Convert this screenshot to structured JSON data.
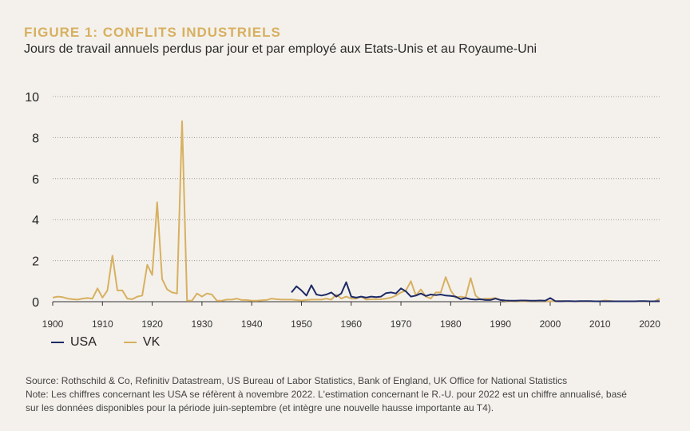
{
  "title": "FIGURE 1: CONFLITS INDUSTRIELS",
  "subtitle": "Jours de travail annuels perdus par jour et par employé aux Etats-Unis et au Royaume-Uni",
  "footer": {
    "source": "Source: Rothschild & Co, Refinitiv Datastream, US Bureau of Labor Statistics, Bank of England, UK Office for National Statistics",
    "note_line1": "Note: Les chiffres concernant les USA se réfèrent à novembre 2022. L'estimation concernant le R.-U. pour 2022 est un chiffre annualisé, basé",
    "note_line2": "sur les données disponibles pour la période juin-septembre (et intègre une nouvelle hausse importante au T4)."
  },
  "colors": {
    "usa": "#1e2a66",
    "uk": "#d7b060",
    "axis": "#333333",
    "grid": "#999999"
  },
  "chart_data": {
    "type": "line",
    "title": "FIGURE 1: CONFLITS INDUSTRIELS",
    "subtitle": "Jours de travail annuels perdus par jour et par employé aux Etats-Unis et au Royaume-Uni",
    "xlabel": "",
    "ylabel": "",
    "xlim": [
      1900,
      2022
    ],
    "ylim": [
      0,
      10
    ],
    "yticks": [
      0,
      2,
      4,
      6,
      8,
      10
    ],
    "xticks": [
      1900,
      1910,
      1920,
      1930,
      1940,
      1950,
      1960,
      1970,
      1980,
      1990,
      2000,
      2010,
      2020
    ],
    "grid": "horizontal dotted",
    "legend": "bottom-left",
    "series": [
      {
        "name": "USA",
        "color": "#1e2a66",
        "x": [
          1948,
          1949,
          1950,
          1951,
          1952,
          1953,
          1954,
          1955,
          1956,
          1957,
          1958,
          1959,
          1960,
          1961,
          1962,
          1963,
          1964,
          1965,
          1966,
          1967,
          1968,
          1969,
          1970,
          1971,
          1972,
          1973,
          1974,
          1975,
          1976,
          1977,
          1978,
          1979,
          1980,
          1981,
          1982,
          1983,
          1984,
          1985,
          1986,
          1987,
          1988,
          1989,
          1990,
          1991,
          1992,
          1993,
          1994,
          1995,
          1996,
          1997,
          1998,
          1999,
          2000,
          2001,
          2002,
          2003,
          2004,
          2005,
          2006,
          2007,
          2008,
          2009,
          2010,
          2011,
          2012,
          2013,
          2014,
          2015,
          2016,
          2017,
          2018,
          2019,
          2020,
          2021,
          2022
        ],
        "values": [
          0.45,
          0.75,
          0.55,
          0.3,
          0.8,
          0.35,
          0.3,
          0.35,
          0.45,
          0.25,
          0.4,
          0.95,
          0.25,
          0.2,
          0.25,
          0.2,
          0.25,
          0.22,
          0.25,
          0.42,
          0.45,
          0.4,
          0.65,
          0.5,
          0.25,
          0.3,
          0.4,
          0.28,
          0.35,
          0.32,
          0.35,
          0.3,
          0.28,
          0.25,
          0.12,
          0.18,
          0.12,
          0.1,
          0.12,
          0.08,
          0.08,
          0.15,
          0.08,
          0.06,
          0.05,
          0.05,
          0.06,
          0.06,
          0.05,
          0.05,
          0.06,
          0.05,
          0.18,
          0.03,
          0.02,
          0.03,
          0.03,
          0.02,
          0.03,
          0.03,
          0.03,
          0.02,
          0.02,
          0.02,
          0.02,
          0.02,
          0.02,
          0.02,
          0.02,
          0.02,
          0.03,
          0.03,
          0.02,
          0.02,
          0.03
        ]
      },
      {
        "name": "VK",
        "color": "#d7b060",
        "x": [
          1900,
          1901,
          1902,
          1903,
          1904,
          1905,
          1906,
          1907,
          1908,
          1909,
          1910,
          1911,
          1912,
          1913,
          1914,
          1915,
          1916,
          1917,
          1918,
          1919,
          1920,
          1921,
          1922,
          1923,
          1924,
          1925,
          1926,
          1927,
          1928,
          1929,
          1930,
          1931,
          1932,
          1933,
          1934,
          1935,
          1936,
          1937,
          1938,
          1939,
          1940,
          1941,
          1942,
          1943,
          1944,
          1945,
          1946,
          1947,
          1948,
          1949,
          1950,
          1951,
          1952,
          1953,
          1954,
          1955,
          1956,
          1957,
          1958,
          1959,
          1960,
          1961,
          1962,
          1963,
          1964,
          1965,
          1966,
          1967,
          1968,
          1969,
          1970,
          1971,
          1972,
          1973,
          1974,
          1975,
          1976,
          1977,
          1978,
          1979,
          1980,
          1981,
          1982,
          1983,
          1984,
          1985,
          1986,
          1987,
          1988,
          1989,
          1990,
          1991,
          1992,
          1993,
          1994,
          1995,
          1996,
          1997,
          1998,
          1999,
          2000,
          2001,
          2002,
          2003,
          2004,
          2005,
          2006,
          2007,
          2008,
          2009,
          2010,
          2011,
          2012,
          2013,
          2014,
          2015,
          2016,
          2017,
          2018,
          2019,
          2020,
          2021,
          2022
        ],
        "values": [
          0.2,
          0.25,
          0.22,
          0.15,
          0.12,
          0.1,
          0.15,
          0.18,
          0.15,
          0.65,
          0.2,
          0.55,
          2.25,
          0.55,
          0.55,
          0.15,
          0.12,
          0.25,
          0.3,
          1.8,
          1.3,
          4.85,
          1.1,
          0.6,
          0.45,
          0.4,
          8.8,
          0.05,
          0.05,
          0.4,
          0.25,
          0.4,
          0.35,
          0.05,
          0.05,
          0.1,
          0.1,
          0.15,
          0.08,
          0.08,
          0.05,
          0.05,
          0.07,
          0.08,
          0.15,
          0.12,
          0.1,
          0.1,
          0.1,
          0.08,
          0.06,
          0.08,
          0.1,
          0.1,
          0.1,
          0.15,
          0.1,
          0.35,
          0.15,
          0.25,
          0.15,
          0.15,
          0.25,
          0.1,
          0.12,
          0.12,
          0.12,
          0.15,
          0.2,
          0.3,
          0.45,
          0.55,
          1.0,
          0.3,
          0.6,
          0.25,
          0.15,
          0.45,
          0.45,
          1.2,
          0.55,
          0.2,
          0.25,
          0.2,
          1.15,
          0.3,
          0.1,
          0.15,
          0.15,
          0.18,
          0.08,
          0.03,
          0.02,
          0.03,
          0.02,
          0.02,
          0.03,
          0.03,
          0.03,
          0.03,
          0.02,
          0.02,
          0.04,
          0.02,
          0.02,
          0.02,
          0.02,
          0.02,
          0.02,
          0.02,
          0.02,
          0.06,
          0.04,
          0.02,
          0.02,
          0.02,
          0.02,
          0.02,
          0.02,
          0.02,
          0.02,
          0.02,
          0.15
        ]
      }
    ]
  }
}
